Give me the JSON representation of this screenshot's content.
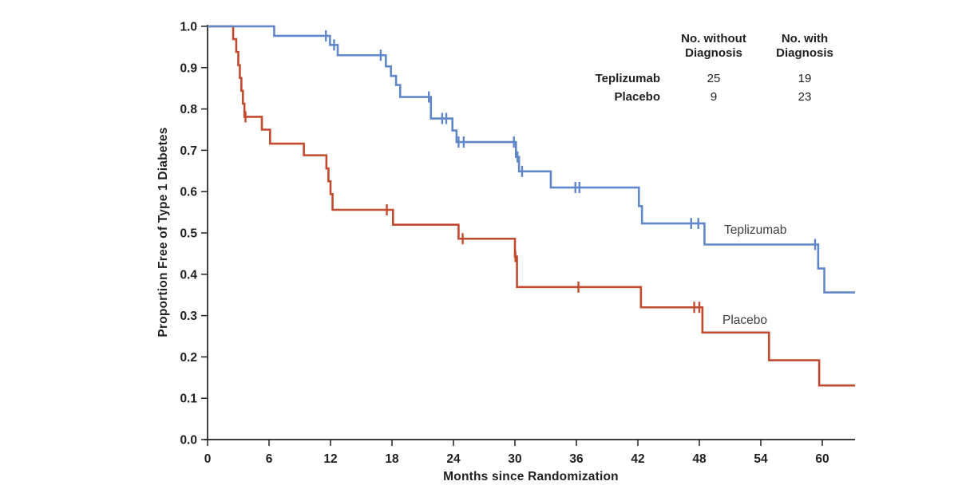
{
  "chart_data": {
    "type": "line",
    "subtype": "kaplan-meier-step",
    "title": "",
    "xlabel": "Months since Randomization",
    "ylabel": "Proportion Free of Type 1 Diabetes",
    "xlim": [
      0,
      63.2
    ],
    "ylim": [
      0.0,
      1.0
    ],
    "x_ticks": [
      0,
      6,
      12,
      18,
      24,
      30,
      36,
      42,
      48,
      54,
      60
    ],
    "y_ticks": [
      "0.0",
      "0.1",
      "0.2",
      "0.3",
      "0.4",
      "0.5",
      "0.6",
      "0.7",
      "0.8",
      "0.9",
      "1.0"
    ],
    "grid": false,
    "legend_position": "labels-on-curves",
    "axis_color": "#231f20",
    "curve_end_x": 63.2,
    "series": [
      {
        "name": "Teplizumab",
        "color": "#6287c8",
        "points": [
          [
            0,
            1.0
          ],
          [
            6.5,
            0.977
          ],
          [
            11.95,
            0.955
          ],
          [
            12.7,
            0.93
          ],
          [
            17.4,
            0.903
          ],
          [
            17.9,
            0.88
          ],
          [
            18.4,
            0.858
          ],
          [
            18.8,
            0.829
          ],
          [
            21.8,
            0.777
          ],
          [
            23.9,
            0.748
          ],
          [
            24.3,
            0.72
          ],
          [
            30.1,
            0.684
          ],
          [
            30.4,
            0.649
          ],
          [
            33.5,
            0.61
          ],
          [
            42.1,
            0.565
          ],
          [
            42.4,
            0.523
          ],
          [
            48.5,
            0.472
          ],
          [
            59.6,
            0.414
          ],
          [
            60.2,
            0.356
          ]
        ],
        "censors": [
          [
            11.55,
            0.977
          ],
          [
            12.35,
            0.955
          ],
          [
            16.9,
            0.93
          ],
          [
            21.6,
            0.829
          ],
          [
            22.9,
            0.777
          ],
          [
            23.3,
            0.777
          ],
          [
            24.5,
            0.72
          ],
          [
            25.0,
            0.72
          ],
          [
            29.9,
            0.72
          ],
          [
            30.25,
            0.684
          ],
          [
            30.7,
            0.649
          ],
          [
            35.9,
            0.61
          ],
          [
            36.3,
            0.61
          ],
          [
            47.2,
            0.523
          ],
          [
            47.9,
            0.523
          ],
          [
            59.3,
            0.472
          ]
        ]
      },
      {
        "name": "Placebo",
        "color": "#c24a2e",
        "points": [
          [
            0,
            1.0
          ],
          [
            2.5,
            0.969
          ],
          [
            2.8,
            0.938
          ],
          [
            3.0,
            0.906
          ],
          [
            3.15,
            0.875
          ],
          [
            3.3,
            0.844
          ],
          [
            3.45,
            0.813
          ],
          [
            3.6,
            0.781
          ],
          [
            5.3,
            0.75
          ],
          [
            6.1,
            0.716
          ],
          [
            9.4,
            0.688
          ],
          [
            11.6,
            0.656
          ],
          [
            11.8,
            0.625
          ],
          [
            12.0,
            0.594
          ],
          [
            12.2,
            0.556
          ],
          [
            18.1,
            0.52
          ],
          [
            24.5,
            0.486
          ],
          [
            30.0,
            0.443
          ],
          [
            30.2,
            0.369
          ],
          [
            42.3,
            0.32
          ],
          [
            48.3,
            0.259
          ],
          [
            54.8,
            0.192
          ],
          [
            59.7,
            0.131
          ]
        ],
        "censors": [
          [
            3.7,
            0.781
          ],
          [
            17.5,
            0.556
          ],
          [
            24.9,
            0.486
          ],
          [
            30.05,
            0.443
          ],
          [
            36.2,
            0.369
          ],
          [
            47.5,
            0.32
          ],
          [
            48.0,
            0.32
          ]
        ]
      }
    ]
  },
  "risk_table": {
    "col_headers": [
      "No. without Diagnosis",
      "No. with Diagnosis"
    ],
    "rows": [
      {
        "label": "Teplizumab",
        "without": "25",
        "with": "19"
      },
      {
        "label": "Placebo",
        "without": "9",
        "with": "23"
      }
    ]
  }
}
